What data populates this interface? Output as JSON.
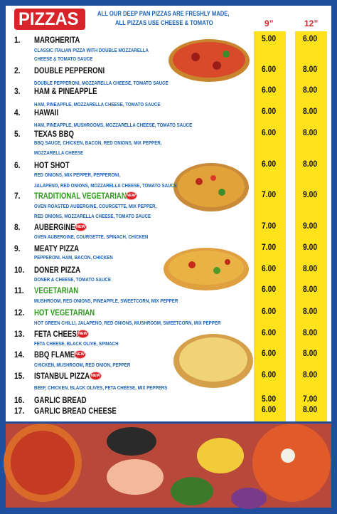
{
  "header": {
    "badge": "PIZZAS",
    "note_lines": [
      "ALL OUR DEEP PAN PIZZAS ARE FRESHLY MADE,",
      "ALL PIZZAS USE CHEESE & TOMATO"
    ],
    "sizes": [
      "9”",
      "12”"
    ]
  },
  "items": [
    {
      "number": "1.",
      "name": "MARGHERITA",
      "description": [
        "CLASSIC ITALIAN PIZZA WITH DOUBLE MOZZARELLA",
        "CHEESE & TOMATO SAUCE"
      ],
      "prices": [
        "5.00",
        "6.00"
      ]
    },
    {
      "number": "2.",
      "name": "DOUBLE PEPPERONI",
      "description": [
        "DOUBLE PEPPERONI, MOZZARELLA CHEESE, TOMATO SAUCE"
      ],
      "prices": [
        "6.00",
        "8.00"
      ]
    },
    {
      "number": "3.",
      "name": "HAM & PINEAPPLE",
      "description": [
        "HAM, PINEAPPLE, MOZZARELLA CHEESE, TOMATO SAUCE"
      ],
      "prices": [
        "6.00",
        "8.00"
      ]
    },
    {
      "number": "4.",
      "name": "HAWAII",
      "description": [
        "HAM, PINEAPPLE, MUSHROOMS, MOZZARELLA CHEESE, TOMATO SAUCE"
      ],
      "prices": [
        "6.00",
        "8.00"
      ]
    },
    {
      "number": "5.",
      "name": "TEXAS BBQ",
      "description": [
        "BBQ SAUCE, CHICKEN, BACON, RED ONIONS, MIX PEPPER,",
        "MOZZARELLA CHEESE"
      ],
      "prices": [
        "6.00",
        "8.00"
      ]
    },
    {
      "number": "6.",
      "name": "HOT SHOT",
      "description": [
        "RED ONIONS, MIX PEPPER, PEPPERONI,",
        "JALAPENO, RED ONIONS, MOZZARELLA CHEESE, TOMATO SAUCE"
      ],
      "prices": [
        "6.00",
        "8.00"
      ]
    },
    {
      "number": "7.",
      "name": "TRADITIONAL VEGETARIAN",
      "badge": "NEW",
      "description": [
        "OVEN ROASTED AUBERGINE, COURGETTE, MIX PEPPER,",
        "RED ONIONS, MOZZARELLA CHEESE, TOMATO SAUCE"
      ],
      "prices": [
        "7.00",
        "9.00"
      ]
    },
    {
      "number": "8.",
      "name": "AUBERGINE",
      "badge": "NEW",
      "description": [
        "OVEN AUBERGINE, COURGETTE, SPINACH, CHICKEN"
      ],
      "prices": [
        "7.00",
        "9.00"
      ]
    },
    {
      "number": "9.",
      "name": "MEATY PIZZA",
      "description": [
        "PEPPERONI, HAM, BACON, CHICKEN"
      ],
      "prices": [
        "7.00",
        "9.00"
      ]
    },
    {
      "number": "10.",
      "name": "DONER PIZZA",
      "description": [
        "DONER & CHEESE, TOMATO SAUCE"
      ],
      "prices": [
        "6.00",
        "8.00"
      ]
    },
    {
      "number": "11.",
      "name": "VEGETARIAN",
      "description": [
        "MUSHROOM, RED ONIONS, PINEAPPLE, SWEETCORN, MIX PEPPER"
      ],
      "prices": [
        "6.00",
        "8.00"
      ]
    },
    {
      "number": "12.",
      "name": "HOT VEGETARIAN",
      "description": [
        "HOT GREEN CHILLI, JALAPENO, RED ONIONS, MUSHROOM, SWEETCORN, MIX PEPPER"
      ],
      "prices": [
        "6.00",
        "8.00"
      ]
    },
    {
      "number": "13.",
      "name": "FETA CHEESE",
      "badge": "NEW",
      "description": [
        "FETA CHEESE, BLACK OLIVE, SPINACH"
      ],
      "prices": [
        "6.00",
        "8.00"
      ]
    },
    {
      "number": "14.",
      "name": "BBQ FLAME",
      "badge": "NEW",
      "description": [
        "CHICKEN, MUSHROOM, RED ONION, PEPPER"
      ],
      "prices": [
        "6.00",
        "8.00"
      ]
    },
    {
      "number": "15.",
      "name": "ISTANBUL PIZZA",
      "badge": "NEW",
      "description": [
        "BEEF, CHICKEN, BLACK OLIVES, FETA CHEESE, MIX PEPPERS"
      ],
      "prices": [
        "6.00",
        "8.00"
      ]
    },
    {
      "number": "16.",
      "name": "GARLIC BREAD",
      "description": [],
      "prices": [
        "5.00",
        "7.00"
      ]
    },
    {
      "number": "17.",
      "name": "GARLIC BREAD CHEESE",
      "description": [],
      "prices": [
        "6.00",
        "8.00"
      ]
    }
  ]
}
